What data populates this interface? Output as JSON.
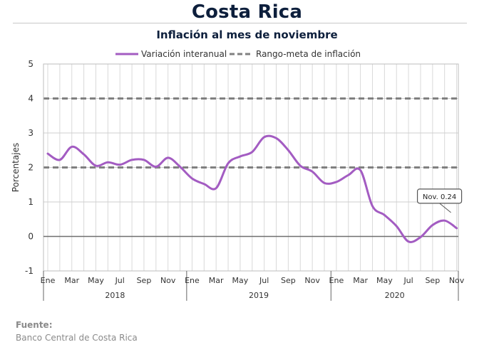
{
  "header": {
    "title": "Costa Rica",
    "subtitle": "Inflación al mes de noviembre"
  },
  "source": {
    "label": "Fuente:",
    "text": "Banco Central de Costa Rica"
  },
  "chart_data": {
    "type": "line",
    "ylabel": "Porcentajes",
    "ylim": [
      -1,
      5
    ],
    "yticks": [
      "-1",
      "0",
      "1",
      "2",
      "3",
      "4",
      "5"
    ],
    "grid": true,
    "legend_position": "top",
    "month_labels": [
      "Ene",
      "",
      "Mar",
      "",
      "May",
      "",
      "Jul",
      "",
      "Sep",
      "",
      "Nov",
      "",
      "Ene",
      "",
      "Mar",
      "",
      "May",
      "",
      "Jul",
      "",
      "Sep",
      "",
      "Nov",
      "",
      "Ene",
      "",
      "Mar",
      "",
      "May",
      "",
      "Jul",
      "",
      "Sep",
      "",
      "Nov"
    ],
    "years": [
      "2018",
      "2019",
      "2020"
    ],
    "series": [
      {
        "name": "Variación interanual",
        "color": "#a35cc2",
        "style": "solid",
        "values": [
          2.4,
          2.22,
          2.6,
          2.38,
          2.05,
          2.15,
          2.08,
          2.22,
          2.22,
          2.02,
          2.28,
          2.02,
          1.68,
          1.52,
          1.4,
          2.12,
          2.32,
          2.45,
          2.88,
          2.85,
          2.5,
          2.05,
          1.88,
          1.55,
          1.58,
          1.78,
          1.92,
          0.88,
          0.62,
          0.3,
          -0.15,
          -0.02,
          0.33,
          0.46,
          0.24
        ]
      },
      {
        "name": "Rango-meta de inflación",
        "color": "#808080",
        "style": "dashed",
        "upper": 4,
        "lower": 2
      }
    ],
    "annotation": {
      "text": "Nov. 0.24",
      "point_index": 34,
      "value": 0.24
    }
  }
}
